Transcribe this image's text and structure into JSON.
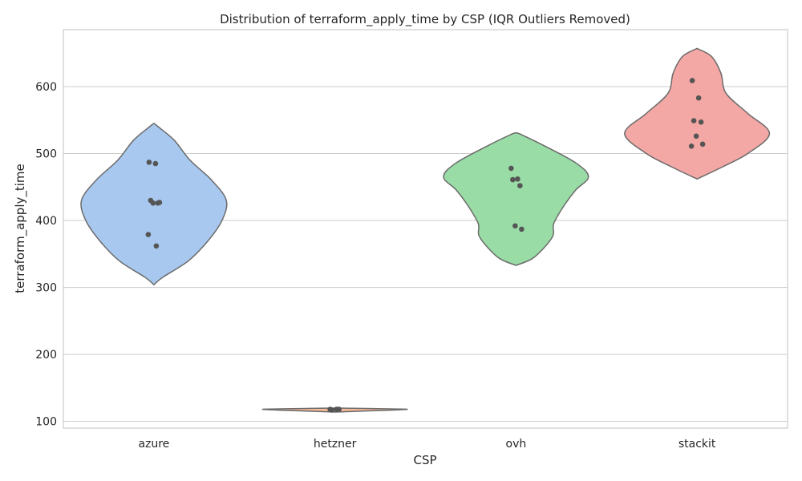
{
  "chart_data": {
    "type": "violin",
    "title": "Distribution of terraform_apply_time by CSP (IQR Outliers Removed)",
    "xlabel": "CSP",
    "ylabel": "terraform_apply_time",
    "ylim": [
      90,
      685
    ],
    "yticks": [
      100,
      200,
      300,
      400,
      500,
      600
    ],
    "grid": true,
    "categories": [
      "azure",
      "hetzner",
      "ovh",
      "stackit"
    ],
    "colors": [
      "#a8c8ef",
      "#f5b99a",
      "#99dca6",
      "#f4a8a5"
    ],
    "series": [
      {
        "category": "azure",
        "points": [
          487,
          485,
          430,
          426,
          426,
          427,
          379,
          362
        ],
        "profile": [
          [
            304,
            0
          ],
          [
            315,
            0.12
          ],
          [
            340,
            0.48
          ],
          [
            370,
            0.75
          ],
          [
            400,
            0.94
          ],
          [
            430,
            1.0
          ],
          [
            460,
            0.8
          ],
          [
            490,
            0.5
          ],
          [
            520,
            0.28
          ],
          [
            540,
            0.06
          ],
          [
            545,
            0
          ]
        ]
      },
      {
        "category": "hetzner",
        "points": [
          118,
          118,
          117,
          118
        ],
        "profile": [
          [
            114,
            0
          ],
          [
            116,
            0.55
          ],
          [
            118,
            1.0
          ],
          [
            119,
            0.6
          ],
          [
            120,
            0
          ]
        ]
      },
      {
        "category": "ovh",
        "points": [
          478,
          462,
          461,
          452,
          392,
          387
        ],
        "profile": [
          [
            333,
            0
          ],
          [
            345,
            0.25
          ],
          [
            375,
            0.5
          ],
          [
            395,
            0.52
          ],
          [
            420,
            0.65
          ],
          [
            445,
            0.82
          ],
          [
            465,
            1.0
          ],
          [
            485,
            0.84
          ],
          [
            510,
            0.42
          ],
          [
            528,
            0.08
          ],
          [
            531,
            0
          ]
        ]
      },
      {
        "category": "stackit",
        "points": [
          609,
          583,
          549,
          547,
          526,
          514,
          511
        ],
        "profile": [
          [
            462,
            0
          ],
          [
            480,
            0.35
          ],
          [
            500,
            0.7
          ],
          [
            530,
            1.0
          ],
          [
            560,
            0.7
          ],
          [
            590,
            0.4
          ],
          [
            620,
            0.33
          ],
          [
            645,
            0.2
          ],
          [
            657,
            0
          ]
        ]
      }
    ]
  }
}
